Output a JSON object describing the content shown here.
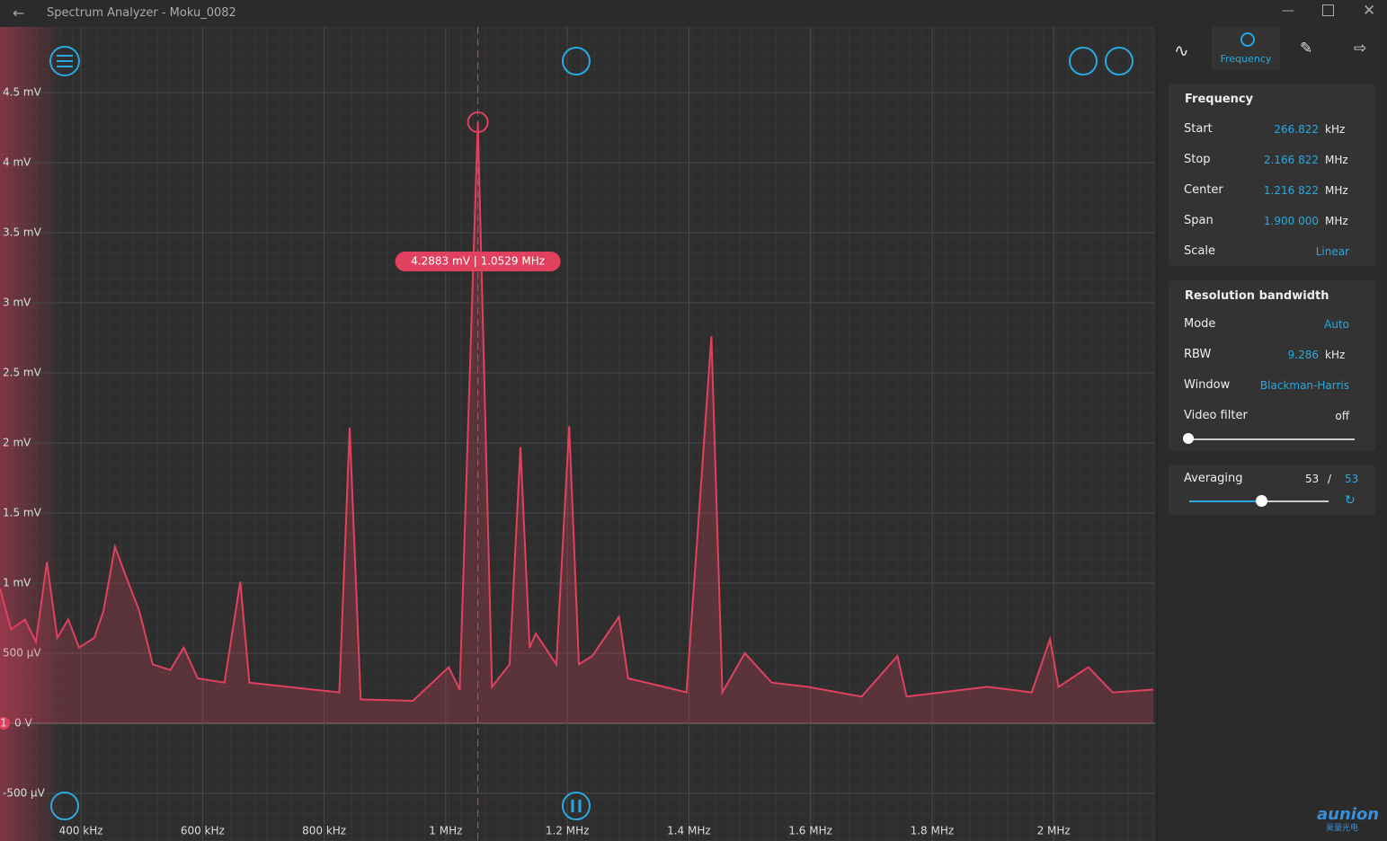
{
  "window": {
    "title": "Spectrum Analyzer - Moku_0082"
  },
  "tabs": {
    "active": "Frequency"
  },
  "plot": {
    "type": "line",
    "color": "#e0415f",
    "marker_label": "4.2883 mV | 1.0529 MHz",
    "marker": {
      "x": 1052.9,
      "y": 4.2883
    },
    "channel": "1",
    "x": [
      267,
      285,
      308,
      326,
      344,
      361,
      379,
      397,
      422,
      437,
      456,
      473,
      496,
      518,
      547,
      569,
      592,
      636,
      662,
      677,
      739,
      825,
      842,
      860,
      946,
      1005,
      1023,
      1052.9,
      1076,
      1105,
      1123,
      1138,
      1148,
      1182,
      1203,
      1219,
      1241,
      1285,
      1300,
      1359,
      1396,
      1437,
      1455,
      1492,
      1536,
      1595,
      1684,
      1743,
      1758,
      1891,
      1964,
      1994,
      2008,
      2057,
      2097,
      2164
    ],
    "values": [
      0.96,
      0.67,
      0.74,
      0.58,
      1.15,
      0.61,
      0.74,
      0.54,
      0.61,
      0.8,
      1.26,
      1.06,
      0.8,
      0.42,
      0.38,
      0.54,
      0.32,
      0.29,
      1.01,
      0.29,
      0.26,
      0.22,
      2.11,
      0.17,
      0.16,
      0.4,
      0.24,
      4.2883,
      0.26,
      0.42,
      1.97,
      0.54,
      0.64,
      0.42,
      2.12,
      0.42,
      0.48,
      0.76,
      0.32,
      0.26,
      0.22,
      2.76,
      0.22,
      0.5,
      0.29,
      0.26,
      0.19,
      0.48,
      0.19,
      0.26,
      0.22,
      0.6,
      0.26,
      0.4,
      0.22,
      0.24
    ],
    "xlim": [
      266.822,
      2166.822
    ],
    "xticks": [
      {
        "value": 400,
        "label": "400 kHz"
      },
      {
        "value": 600,
        "label": "600 kHz"
      },
      {
        "value": 800,
        "label": "800 kHz"
      },
      {
        "value": 1000,
        "label": "1 MHz"
      },
      {
        "value": 1200,
        "label": "1.2 MHz"
      },
      {
        "value": 1400,
        "label": "1.4 MHz"
      },
      {
        "value": 1600,
        "label": "1.6 MHz"
      },
      {
        "value": 1800,
        "label": "1.8 MHz"
      },
      {
        "value": 2000,
        "label": "2 MHz"
      }
    ],
    "ylim": [
      -0.84,
      4.955
    ],
    "yticks": [
      {
        "value": -0.5,
        "label": "-500 µV"
      },
      {
        "value": 0,
        "label": "0 V"
      },
      {
        "value": 0.5,
        "label": "500 µV"
      },
      {
        "value": 1,
        "label": "1 mV"
      },
      {
        "value": 1.5,
        "label": "1.5 mV"
      },
      {
        "value": 2,
        "label": "2 mV"
      },
      {
        "value": 2.5,
        "label": "2.5 mV"
      },
      {
        "value": 3,
        "label": "3 mV"
      },
      {
        "value": 3.5,
        "label": "3.5 mV"
      },
      {
        "value": 4,
        "label": "4 mV"
      },
      {
        "value": 4.5,
        "label": "4.5 mV"
      }
    ]
  },
  "frequency": {
    "title": "Frequency",
    "rows": [
      [
        "Start",
        "266.822",
        "kHz"
      ],
      [
        "Stop",
        "2.166 822",
        "MHz"
      ],
      [
        "Center",
        "1.216 822",
        "MHz"
      ],
      [
        "Span",
        "1.900 000",
        "MHz"
      ],
      [
        "Scale",
        "Linear"
      ]
    ]
  },
  "rbw": {
    "title": "Resolution bandwidth",
    "rows": [
      [
        "Mode",
        "Auto"
      ],
      [
        "RBW",
        "9.286",
        "kHz"
      ],
      [
        "Window",
        "Blackman-Harris"
      ],
      [
        "Video filter",
        "off"
      ]
    ]
  },
  "averaging": {
    "label": "Averaging",
    "current": "53",
    "sep": "/",
    "total": "53"
  },
  "watermark": {
    "brand": "aunion",
    "sub": "昊量光电"
  }
}
